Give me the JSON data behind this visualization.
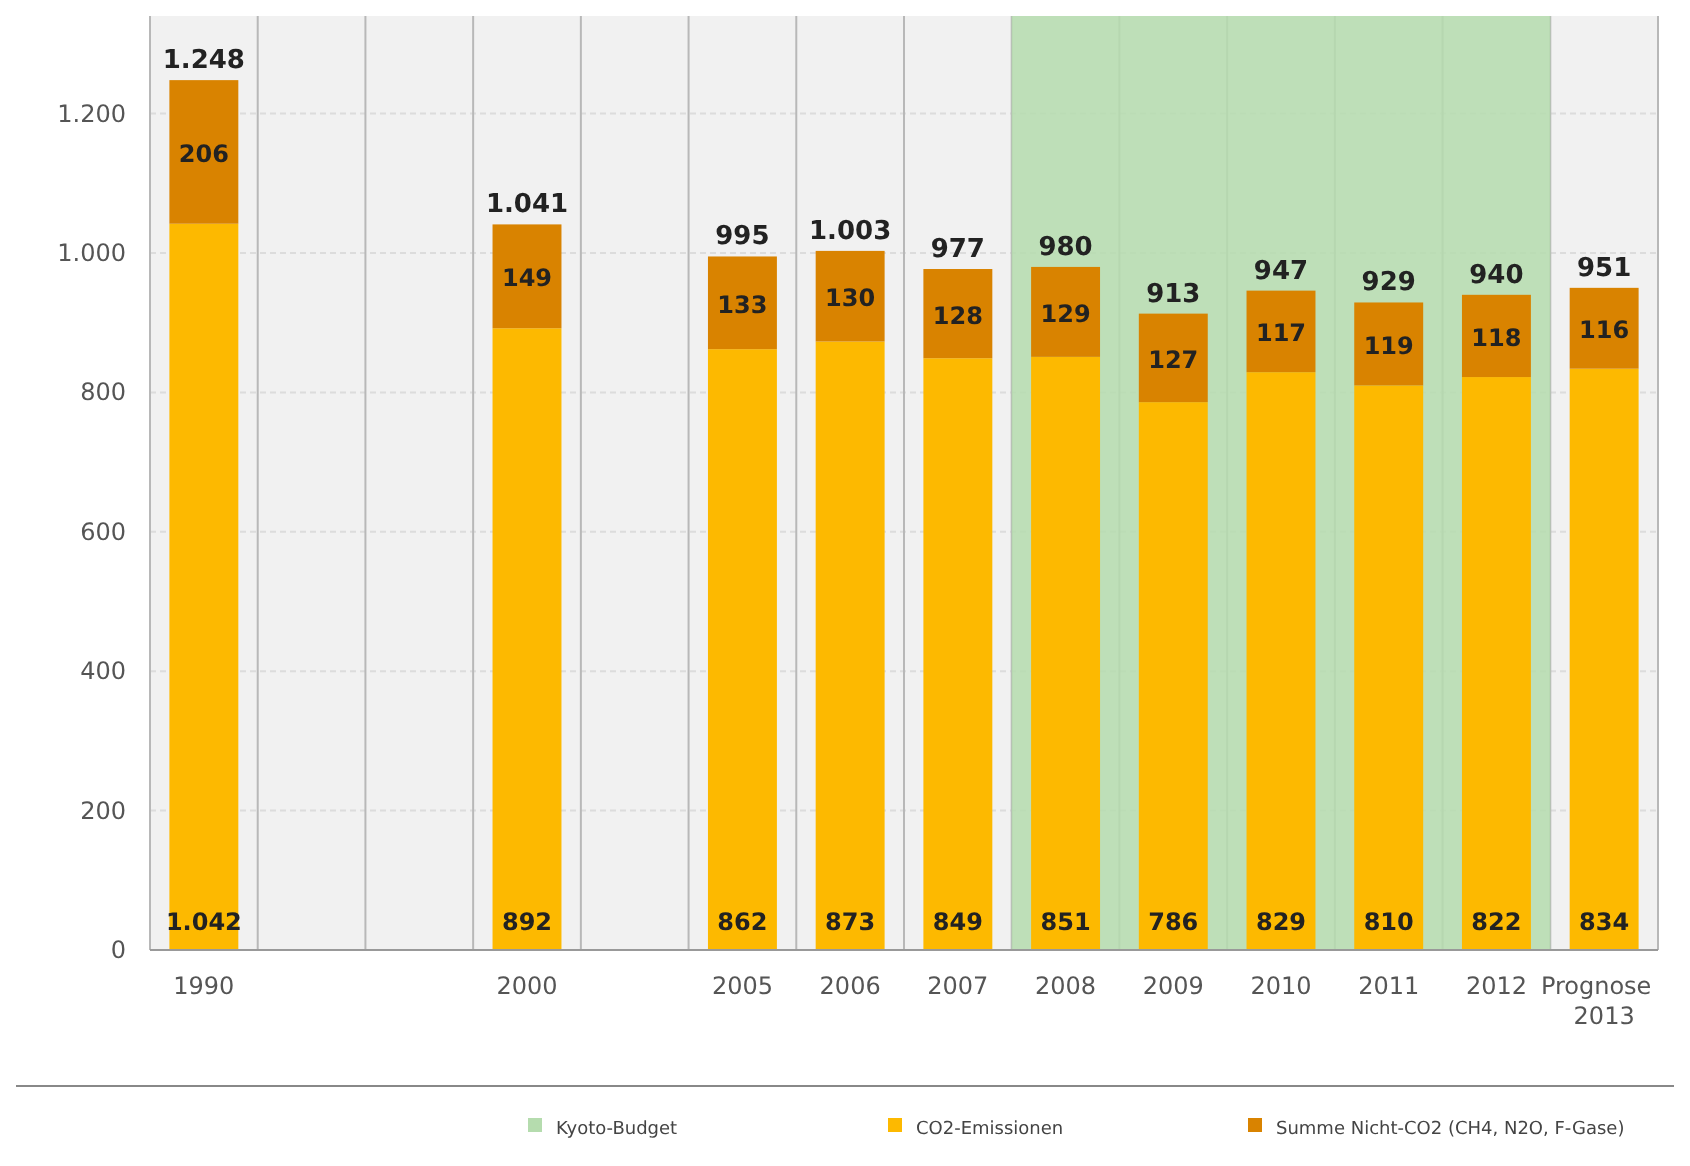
{
  "chart_data": {
    "type": "bar",
    "stacked": true,
    "categories": [
      "1990",
      null,
      null,
      "2000",
      null,
      "2005",
      "2006",
      "2007",
      "2008",
      "2009",
      "2010",
      "2011",
      "2012",
      "Prognose\n2013"
    ],
    "series": [
      {
        "name": "CO2-Emissionen",
        "color": "#fdb900",
        "values": [
          1042,
          null,
          null,
          892,
          null,
          862,
          873,
          849,
          851,
          786,
          829,
          810,
          822,
          834
        ],
        "value_labels": [
          "1.042",
          null,
          null,
          "892",
          null,
          "862",
          "873",
          "849",
          "851",
          "786",
          "829",
          "810",
          "822",
          "834"
        ]
      },
      {
        "name": "Summe Nicht-CO2 (CH4, N2O, F-Gase)",
        "color": "#d98300",
        "values": [
          206,
          null,
          null,
          149,
          null,
          133,
          130,
          128,
          129,
          127,
          117,
          119,
          118,
          116
        ],
        "value_labels": [
          "206",
          null,
          null,
          "149",
          null,
          "133",
          "130",
          "128",
          "129",
          "127",
          "117",
          "119",
          "118",
          "116"
        ]
      }
    ],
    "totals": [
      "1.248",
      null,
      null,
      "1.041",
      null,
      "995",
      "1.003",
      "977",
      "980",
      "913",
      "947",
      "929",
      "940",
      "951"
    ],
    "ylim": [
      0,
      1340
    ],
    "yticks": [
      0,
      200,
      400,
      600,
      800,
      {
        "value": 1000,
        "label": "1.000"
      },
      {
        "value": 1200,
        "label": "1.200"
      }
    ],
    "bands": [
      {
        "axis": "x",
        "from": "2008",
        "to": "2012",
        "label": "Kyoto-Budget",
        "color": "#b5dcae"
      }
    ],
    "grid": true,
    "legend": "bottom"
  }
}
